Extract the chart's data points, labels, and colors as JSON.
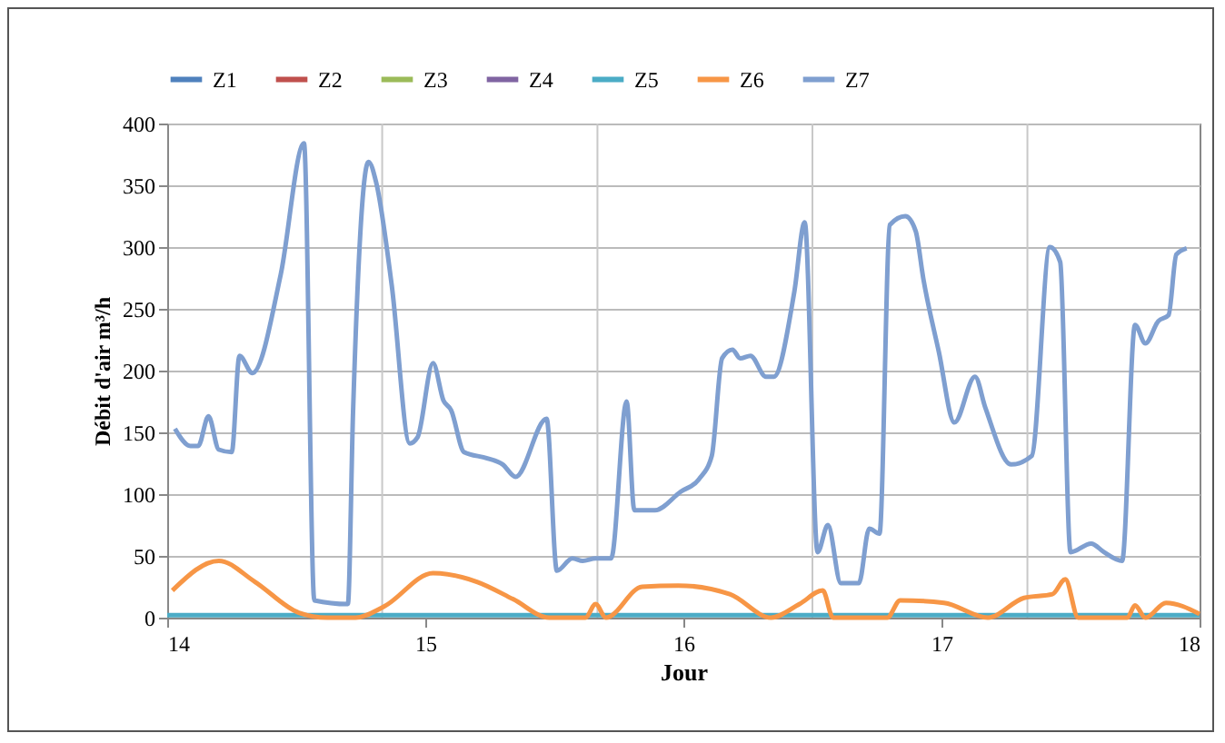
{
  "chart_data": {
    "type": "line",
    "xlabel": "Jour",
    "ylabel": "Débit d'air m³/h",
    "xlim": [
      14,
      18
    ],
    "xticks": [
      14,
      15,
      16,
      17,
      18
    ],
    "ylim": [
      0,
      400
    ],
    "yticks": [
      0,
      50,
      100,
      150,
      200,
      250,
      300,
      350,
      400
    ],
    "grid": "y",
    "legend": "top",
    "line_style": "solid",
    "marker": "none",
    "ref_lines": [
      {
        "axis": "x",
        "value": 14.833,
        "color": "#c8c8c8"
      },
      {
        "axis": "x",
        "value": 15.667,
        "color": "#c8c8c8"
      },
      {
        "axis": "x",
        "value": 16.5,
        "color": "#c8c8c8"
      },
      {
        "axis": "x",
        "value": 17.333,
        "color": "#c8c8c8"
      }
    ],
    "series": [
      {
        "name": "Z1",
        "color": "#4f81bd"
      },
      {
        "name": "Z2",
        "color": "#c0504d"
      },
      {
        "name": "Z3",
        "color": "#9bbb59"
      },
      {
        "name": "Z4",
        "color": "#8064a2"
      },
      {
        "name": "Z5",
        "color": "#4bacc6",
        "x": [
          14,
          18
        ],
        "values": [
          2,
          2
        ]
      },
      {
        "name": "Z6",
        "color": "#f79646",
        "x": [
          14.02,
          14.2,
          14.34,
          14.51,
          14.62,
          14.73,
          14.84,
          15.03,
          15.2,
          15.34,
          15.48,
          15.62,
          15.66,
          15.7,
          15.84,
          15.98,
          16.18,
          16.34,
          16.45,
          16.54,
          16.58,
          16.79,
          16.84,
          17.01,
          17.18,
          17.32,
          17.43,
          17.48,
          17.53,
          17.72,
          17.75,
          17.79,
          17.87,
          18
        ],
        "values": [
          22,
          46,
          29,
          4,
          0,
          0,
          9,
          36,
          29,
          15,
          0,
          0,
          11,
          0,
          25,
          26,
          19,
          0,
          11,
          22,
          0,
          0,
          14,
          12,
          0,
          16,
          19,
          31,
          0,
          0,
          10,
          0,
          12,
          3
        ]
      },
      {
        "name": "Z7",
        "color": "#7f9fd0",
        "x": [
          14.03,
          14.09,
          14.12,
          14.16,
          14.2,
          14.25,
          14.28,
          14.33,
          14.44,
          14.53,
          14.57,
          14.7,
          14.72,
          14.78,
          14.81,
          14.87,
          14.94,
          14.97,
          15.03,
          15.07,
          15.1,
          15.15,
          15.24,
          15.3,
          15.35,
          15.47,
          15.51,
          15.57,
          15.61,
          15.66,
          15.72,
          15.78,
          15.81,
          15.89,
          15.99,
          16.06,
          16.11,
          16.15,
          16.19,
          16.22,
          16.26,
          16.32,
          16.35,
          16.43,
          16.47,
          16.52,
          16.56,
          16.61,
          16.68,
          16.72,
          16.76,
          16.8,
          16.86,
          16.9,
          16.93,
          16.99,
          17.05,
          17.13,
          17.17,
          17.27,
          17.35,
          17.42,
          17.46,
          17.5,
          17.58,
          17.63,
          17.7,
          17.75,
          17.79,
          17.84,
          17.88,
          17.91,
          17.95
        ],
        "values": [
          153,
          139,
          139,
          163,
          136,
          134,
          212,
          198,
          278,
          384,
          14,
          11,
          166,
          369,
          352,
          269,
          141,
          146,
          206,
          176,
          168,
          134,
          129,
          124,
          114,
          161,
          38,
          48,
          46,
          48,
          48,
          175,
          87,
          87,
          102,
          112,
          131,
          210,
          217,
          210,
          212,
          195,
          195,
          264,
          320,
          53,
          75,
          28,
          28,
          72,
          68,
          318,
          325,
          313,
          274,
          215,
          158,
          195,
          170,
          124,
          131,
          300,
          288,
          53,
          60,
          53,
          46,
          237,
          222,
          240,
          245,
          294,
          299
        ]
      }
    ]
  }
}
